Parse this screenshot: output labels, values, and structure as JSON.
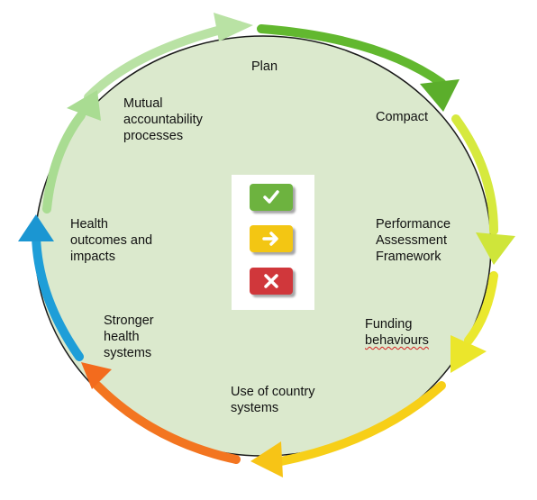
{
  "cycle": {
    "stages": [
      {
        "id": "plan",
        "label": "Plan"
      },
      {
        "id": "compact",
        "label": "Compact"
      },
      {
        "id": "performance-assessment-framework",
        "label": "Performance\nAssessment\nFramework"
      },
      {
        "id": "funding-behaviours",
        "label": "Funding\nbehaviours"
      },
      {
        "id": "use-of-country-systems",
        "label": "Use of country\nsystems"
      },
      {
        "id": "stronger-health-systems",
        "label": "Stronger\nhealth\nsystems"
      },
      {
        "id": "health-outcomes-and-impacts",
        "label": "Health\noutcomes and\nimpacts"
      },
      {
        "id": "mutual-accountability-processes",
        "label": "Mutual\naccountability\nprocesses"
      }
    ]
  },
  "status_panel": {
    "items": [
      {
        "icon": "check-icon",
        "color": "#6db33f"
      },
      {
        "icon": "arrow-right-icon",
        "color": "#f3c613"
      },
      {
        "icon": "cross-icon",
        "color": "#d0373b"
      }
    ]
  },
  "colors": {
    "circle_fill": "#dbe9cd",
    "arrow_segments": [
      "#b4e2a0",
      "#5cb52c",
      "#d3e83a",
      "#e8e62a",
      "#f8d617",
      "#f37321",
      "#1f9fd8",
      "#a8dc90"
    ]
  }
}
